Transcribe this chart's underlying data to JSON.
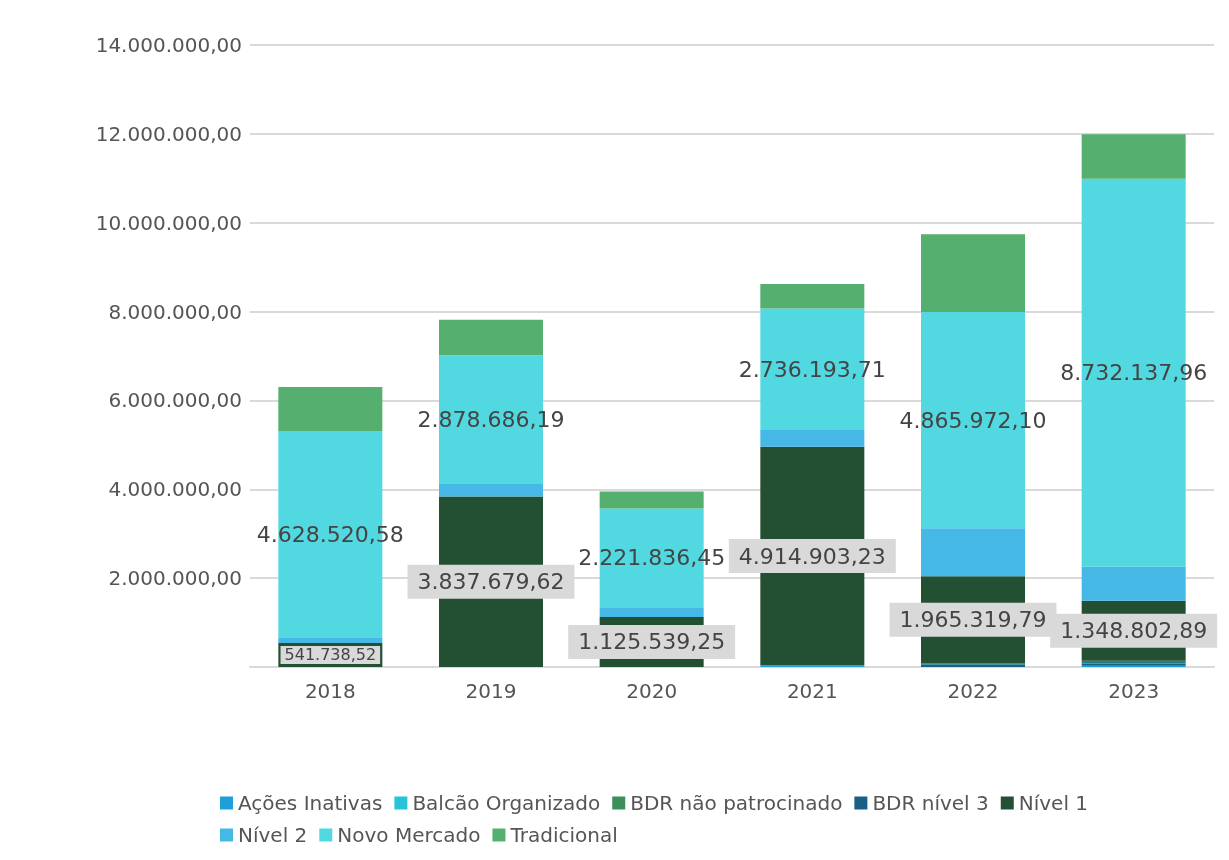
{
  "chart_data": {
    "type": "bar",
    "stacked": true,
    "categories": [
      "2018",
      "2019",
      "2020",
      "2021",
      "2022",
      "2023"
    ],
    "ylim": [
      0,
      14000000
    ],
    "yticks": [
      {
        "value": 0,
        "label": null
      },
      {
        "value": 2000000,
        "label": "2.000.000,00"
      },
      {
        "value": 4000000,
        "label": "4.000.000,00"
      },
      {
        "value": 6000000,
        "label": "6.000.000,00"
      },
      {
        "value": 8000000,
        "label": "8.000.000,00"
      },
      {
        "value": 10000000,
        "label": "10.000.000,00"
      },
      {
        "value": 12000000,
        "label": "12.000.000,00"
      },
      {
        "value": 14000000,
        "label": "14.000.000,00"
      }
    ],
    "grid": "y",
    "legend": "bottom",
    "series": [
      {
        "name": "Ações Inativas",
        "color": "#1f9fd8",
        "values": [
          null,
          null,
          null,
          40000,
          null,
          30000
        ]
      },
      {
        "name": "Balcão Organizado",
        "color": "#26c3d9",
        "values": [
          null,
          null,
          null,
          null,
          null,
          null
        ]
      },
      {
        "name": "BDR não patrocinado",
        "color": "#3a8f5a",
        "values": [
          null,
          null,
          null,
          null,
          null,
          null
        ]
      },
      {
        "name": "BDR nível 3",
        "color": "#1a5f86",
        "values": [
          null,
          null,
          null,
          null,
          50000,
          50000
        ]
      },
      {
        "color": "#1f7f86",
        "values": [
          null,
          null,
          null,
          null,
          30000,
          60000
        ]
      },
      {
        "name": "Nível 1",
        "color": "#234f32",
        "values": [
          541738.52,
          3837679.62,
          1125539.25,
          4914903.23,
          1965319.79,
          1348802.89
        ],
        "value_labels": [
          "541.738,52",
          "3.837.679,62",
          "1.125.539,25",
          "4.914.903,23",
          "1.965.319,79",
          "1.348.802,89"
        ]
      },
      {
        "name": "Nível 2",
        "color": "#46b8e6",
        "values": [
          130000,
          300000,
          220000,
          380000,
          1080000,
          770000
        ]
      },
      {
        "name": "Novo Mercado",
        "color": "#52d8e0",
        "values": [
          4628520.58,
          2878686.19,
          2221836.45,
          2736193.71,
          4865972.1,
          8732137.96
        ],
        "value_labels": [
          "4.628.520,58",
          "2.878.686,19",
          "2.221.836,45",
          "2.736.193,71",
          "4.865.972,10",
          "8.732.137,96"
        ]
      },
      {
        "name": "Tradicional",
        "color": "#55af6e",
        "values": [
          1000000,
          800000,
          380000,
          550000,
          1750000,
          1000000
        ]
      }
    ]
  }
}
